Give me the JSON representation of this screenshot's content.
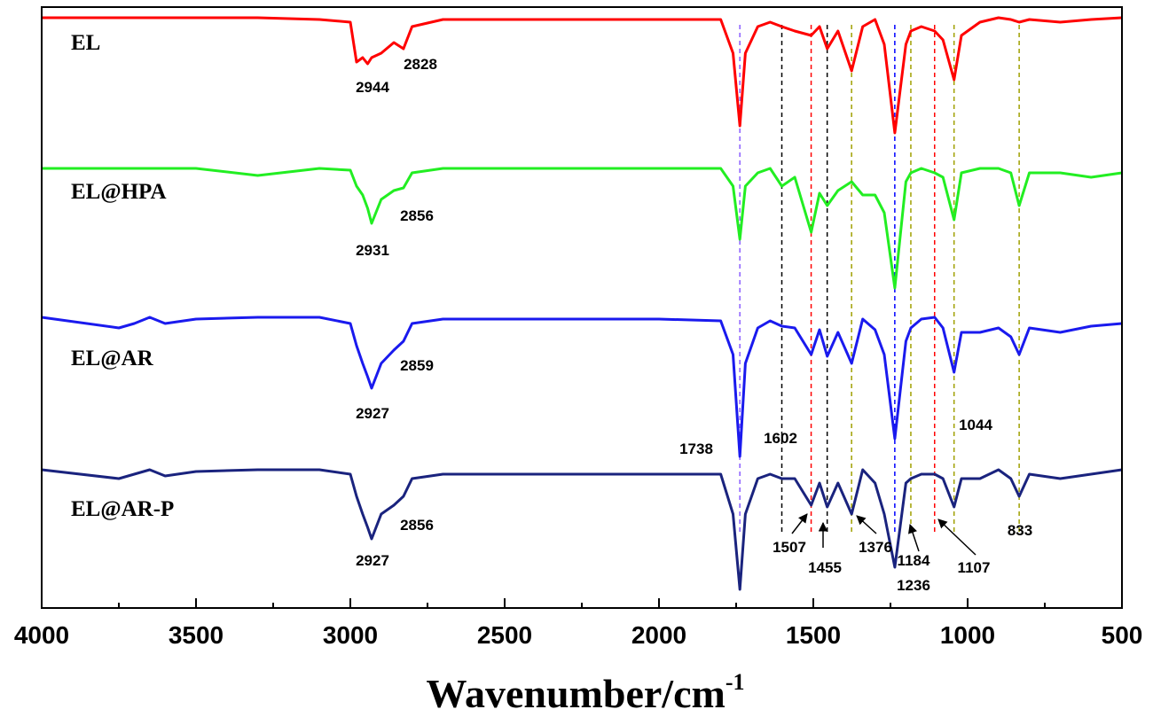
{
  "chart_data": {
    "type": "line",
    "x": [
      4000,
      3750,
      3700,
      3650,
      3600,
      3500,
      3300,
      3100,
      3000,
      2980,
      2960,
      2944,
      2931,
      2900,
      2859,
      2828,
      2800,
      2700,
      2000,
      1800,
      1760,
      1738,
      1720,
      1680,
      1640,
      1602,
      1560,
      1507,
      1480,
      1455,
      1420,
      1376,
      1340,
      1300,
      1270,
      1236,
      1200,
      1184,
      1150,
      1107,
      1080,
      1044,
      1020,
      960,
      900,
      860,
      833,
      800,
      700,
      600,
      500
    ],
    "series": [
      {
        "name": "EL",
        "color": "#ff0000",
        "values": [
          666,
          666,
          666,
          666,
          666,
          666,
          666,
          664,
          661,
          616,
          621,
          614,
          621,
          626,
          638,
          631,
          656,
          664,
          664,
          664,
          626,
          544,
          626,
          656,
          661,
          656,
          651,
          646,
          656,
          631,
          651,
          606,
          656,
          664,
          636,
          536,
          636,
          651,
          656,
          651,
          641,
          596,
          646,
          661,
          666,
          664,
          661,
          664,
          661,
          664,
          666
        ]
      },
      {
        "name": "EL@HPA",
        "color": "#22ee22",
        "values": [
          496,
          496,
          496,
          496,
          496,
          496,
          488,
          496,
          494,
          476,
          466,
          451,
          434,
          461,
          471,
          474,
          491,
          496,
          496,
          496,
          476,
          416,
          476,
          491,
          496,
          476,
          486,
          424,
          468,
          454,
          471,
          481,
          466,
          466,
          446,
          361,
          481,
          491,
          496,
          491,
          486,
          438,
          491,
          496,
          496,
          491,
          454,
          491,
          491,
          486,
          491
        ]
      },
      {
        "name": "EL@AR",
        "color": "#1a1aee",
        "values": [
          328,
          316,
          321,
          328,
          321,
          326,
          328,
          328,
          321,
          296,
          276,
          261,
          248,
          276,
          291,
          301,
          321,
          326,
          326,
          324,
          286,
          171,
          276,
          316,
          324,
          318,
          316,
          286,
          314,
          284,
          311,
          276,
          326,
          314,
          286,
          191,
          301,
          316,
          326,
          328,
          316,
          266,
          311,
          311,
          316,
          306,
          286,
          316,
          311,
          318,
          321
        ]
      },
      {
        "name": "EL@AR-P",
        "color": "#1a237e",
        "values": [
          156,
          146,
          151,
          156,
          149,
          154,
          156,
          156,
          151,
          126,
          106,
          91,
          78,
          106,
          116,
          126,
          146,
          151,
          151,
          151,
          106,
          21,
          106,
          146,
          151,
          146,
          146,
          116,
          141,
          114,
          141,
          106,
          156,
          141,
          106,
          46,
          141,
          146,
          151,
          151,
          146,
          114,
          146,
          146,
          156,
          146,
          126,
          151,
          146,
          151,
          156
        ]
      }
    ],
    "xlim": [
      4000,
      500
    ],
    "ylim": [
      0,
      678
    ],
    "xticks": [
      4000,
      3500,
      3000,
      2500,
      2000,
      1500,
      1000,
      500
    ],
    "xticks_minor": [
      3750,
      3250,
      2750,
      2250,
      1750,
      1250,
      750
    ],
    "xlabel": {
      "text": "Wavenumber/cm",
      "superscript": "-1"
    },
    "annotations": [
      "2944",
      "2828",
      "2931",
      "2856",
      "2927",
      "2859",
      "1738",
      "1602",
      "1044",
      "2927",
      "2856",
      "1507",
      "1455",
      "1376",
      "1236",
      "1184",
      "1107",
      "833"
    ],
    "reference_lines": [
      {
        "x": 1738,
        "color": "#8a5cff"
      },
      {
        "x": 1602,
        "color": "#000000"
      },
      {
        "x": 1507,
        "color": "#ff0000"
      },
      {
        "x": 1455,
        "color": "#000000"
      },
      {
        "x": 1376,
        "color": "#a0a000"
      },
      {
        "x": 1236,
        "color": "#0000ff"
      },
      {
        "x": 1184,
        "color": "#a0a000"
      },
      {
        "x": 1107,
        "color": "#ff0000"
      },
      {
        "x": 1044,
        "color": "#a0a000"
      },
      {
        "x": 833,
        "color": "#a0a000"
      }
    ]
  }
}
